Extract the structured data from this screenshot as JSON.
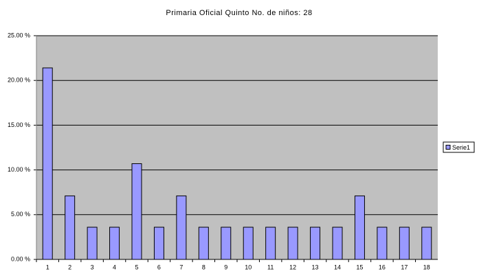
{
  "chart_data": {
    "type": "bar",
    "title": "Primaria Oficial Quinto No. de niños: 28",
    "categories": [
      "1",
      "2",
      "3",
      "4",
      "5",
      "6",
      "7",
      "8",
      "9",
      "10",
      "11",
      "12",
      "13",
      "14",
      "15",
      "16",
      "17",
      "18"
    ],
    "series": [
      {
        "name": "Serie1",
        "color": "#9999ff",
        "values": [
          21.4,
          7.1,
          3.6,
          3.6,
          10.7,
          3.6,
          7.1,
          3.6,
          3.6,
          3.6,
          3.6,
          3.6,
          3.6,
          3.6,
          7.1,
          3.6,
          3.6,
          3.6
        ]
      }
    ],
    "ylim": [
      0,
      25
    ],
    "yticks": [
      {
        "value": 0,
        "label": "0.00 %"
      },
      {
        "value": 5,
        "label": "5.00 %"
      },
      {
        "value": 10,
        "label": "10.00 %"
      },
      {
        "value": 15,
        "label": "15.00 %"
      },
      {
        "value": 20,
        "label": "20.00 %"
      },
      {
        "value": 25,
        "label": "25.00 %"
      }
    ],
    "grid": true,
    "legend": "right"
  }
}
